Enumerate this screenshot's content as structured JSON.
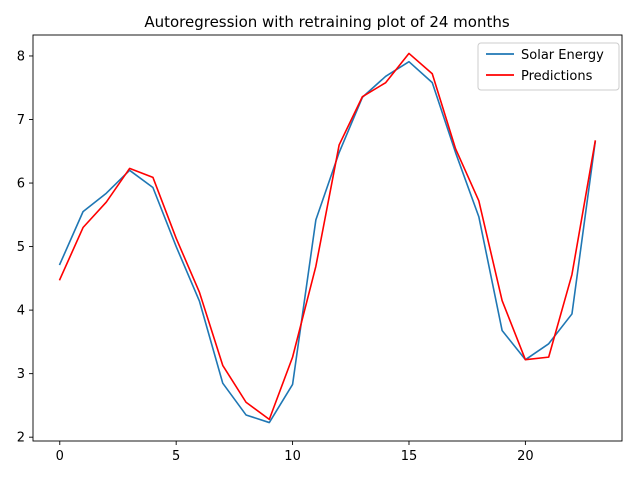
{
  "chart_data": {
    "type": "line",
    "title": "Autoregression with retraining plot of 24 months",
    "xlabel": "",
    "ylabel": "",
    "x": [
      0,
      1,
      2,
      3,
      4,
      5,
      6,
      7,
      8,
      9,
      10,
      11,
      12,
      13,
      14,
      15,
      16,
      17,
      18,
      19,
      20,
      21,
      22,
      23
    ],
    "xlim": [
      -1.15,
      24.15
    ],
    "ylim": [
      1.94,
      8.33
    ],
    "xticks": [
      "0",
      "5",
      "10",
      "15",
      "20"
    ],
    "xtick_values": [
      0,
      5,
      10,
      15,
      20
    ],
    "yticks": [
      "2",
      "3",
      "4",
      "5",
      "6",
      "7",
      "8"
    ],
    "ytick_values": [
      2,
      3,
      4,
      5,
      6,
      7,
      8
    ],
    "grid": false,
    "legend_position": "top-right",
    "series": [
      {
        "name": "Solar Energy",
        "color": "#1f77b4",
        "values": [
          4.72,
          5.55,
          5.84,
          6.2,
          5.93,
          5.0,
          4.14,
          2.85,
          2.35,
          2.23,
          2.83,
          5.42,
          6.48,
          7.35,
          7.68,
          7.91,
          7.58,
          6.48,
          5.47,
          3.68,
          3.22,
          3.47,
          3.94,
          6.65
        ]
      },
      {
        "name": "Predictions",
        "color": "#ff0000",
        "values": [
          4.48,
          5.3,
          5.7,
          6.23,
          6.09,
          5.13,
          4.28,
          3.13,
          2.55,
          2.28,
          3.26,
          4.69,
          6.6,
          7.36,
          7.58,
          8.04,
          7.72,
          6.54,
          5.72,
          4.15,
          3.22,
          3.26,
          4.56,
          6.66
        ]
      }
    ]
  }
}
